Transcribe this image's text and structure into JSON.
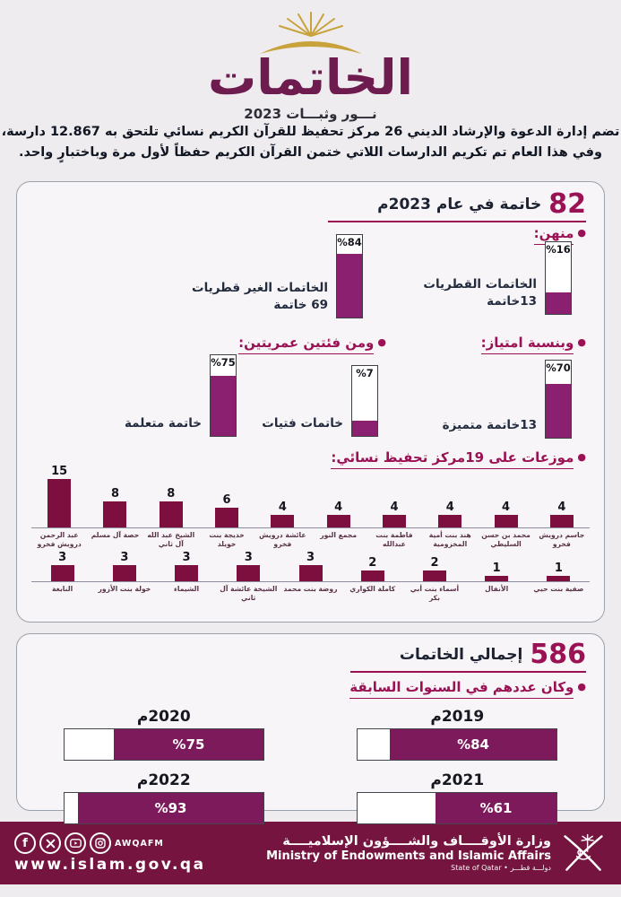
{
  "colors": {
    "accent_maroon": "#9a1254",
    "bar_purple": "#8c2070",
    "bar_dark_maroon": "#7c0f3d",
    "hbar_purple": "#7d1a5b",
    "footer_bg": "#75153f",
    "gold": "#c8a23b"
  },
  "header": {
    "logo_title": "الخاتمات",
    "logo_subtitle": "نـــور وثبـــات 2023",
    "intro_line1": "تضم إدارة الدعوة والإرشاد الديني 26 مركز تحفيظ للقرآن الكريم نسائي تلتحق به 12.867 دارسة،",
    "intro_line2": "وفي هذا العام تم تكريم الدارسات اللاتي ختمن القرآن الكريم حفظاً لأول مرة وباختبارٍ واحد."
  },
  "panel1": {
    "big_number": "82",
    "title": "خاتمة في عام 2023م",
    "section_minhun": "منهن:",
    "section_excellence": "وبنسبة امتياز:",
    "section_age": "ومن فئتين عمريتين:",
    "section_centers": "موزعات على 19مركز تحفيظ نسائي:"
  },
  "panel2": {
    "big_number": "586",
    "title": "إجمالي الخاتمات",
    "section_years": "وكان عددهم في السنوات السابقة"
  },
  "footer": {
    "handle": "AWQAFM",
    "url": "www.islam.gov.qa",
    "ministry_ar": "وزارة الأوقــــاف والشــــؤون الإسلاميــــة",
    "ministry_en": "Ministry of Endowments and Islamic Affairs",
    "state_line": "State of Qatar • دولـــة قطـــر",
    "icon_names": [
      "facebook-icon",
      "x-icon",
      "youtube-icon",
      "instagram-icon"
    ]
  },
  "chart_data": [
    {
      "type": "bar",
      "title": "منهن (من أصل 82 خاتمة في عام 2023م)",
      "categories": [
        "الخاتمات القطريات",
        "الخاتمات الغير قطريات"
      ],
      "values": [
        16,
        84
      ],
      "unit": "%",
      "display_labels": [
        [
          "الخاتمات القطريات",
          "13خاتمة"
        ],
        [
          "الخاتمات الغير قطريات",
          "69 خاتمة"
        ]
      ],
      "fill_pct": [
        30,
        77
      ]
    },
    {
      "type": "bar",
      "title": "وبنسبة امتياز",
      "categories": [
        "13خاتمة متميزة"
      ],
      "values": [
        70
      ],
      "unit": "%",
      "display_labels": [
        [
          "13خاتمة متميزة"
        ]
      ],
      "fill_pct": [
        70
      ]
    },
    {
      "type": "bar",
      "title": "ومن فئتين عمريتين",
      "categories": [
        "خاتمات فتيات",
        "خاتمة متعلمة"
      ],
      "values": [
        7,
        75
      ],
      "unit": "%",
      "display_labels": [
        [
          "خاتمات فتيات"
        ],
        [
          "خاتمة متعلمة"
        ]
      ],
      "fill_pct": [
        22,
        75
      ]
    },
    {
      "type": "bar",
      "title": "موزعات على 19مركز تحفيظ نسائي",
      "row1": {
        "categories": [
          "جاسم درويش فخرو",
          "محمد بن حسن السليطي",
          "هند بنت أمية المخزومية",
          "فاطمة بنت عبدالله",
          "مجمع النور",
          "عائشة درويش فخرو",
          "خديجة بنت خويلد",
          "الشيخ عبد الله آل ثاني",
          "حصة آل مسلم",
          "عبد الرحمن درويش فخرو"
        ],
        "values": [
          4,
          4,
          4,
          4,
          4,
          4,
          6,
          8,
          8,
          15
        ]
      },
      "row2": {
        "categories": [
          "صفية بنت حيي",
          "الأنفال",
          "أسماء بنت أبي بكر",
          "كاملة الكواري",
          "روضة بنت محمد",
          "الشيخة عائشة آل ثاني",
          "الشيماء",
          "خولة بنت الأزور",
          "النابغة"
        ],
        "values": [
          1,
          1,
          2,
          2,
          3,
          3,
          3,
          3,
          3
        ]
      }
    },
    {
      "type": "bar",
      "title": "وكان عددهم في السنوات السابقة",
      "categories": [
        "2019م",
        "2020م",
        "2021م",
        "2022م"
      ],
      "values": [
        84,
        75,
        61,
        93
      ],
      "unit": "%"
    }
  ]
}
